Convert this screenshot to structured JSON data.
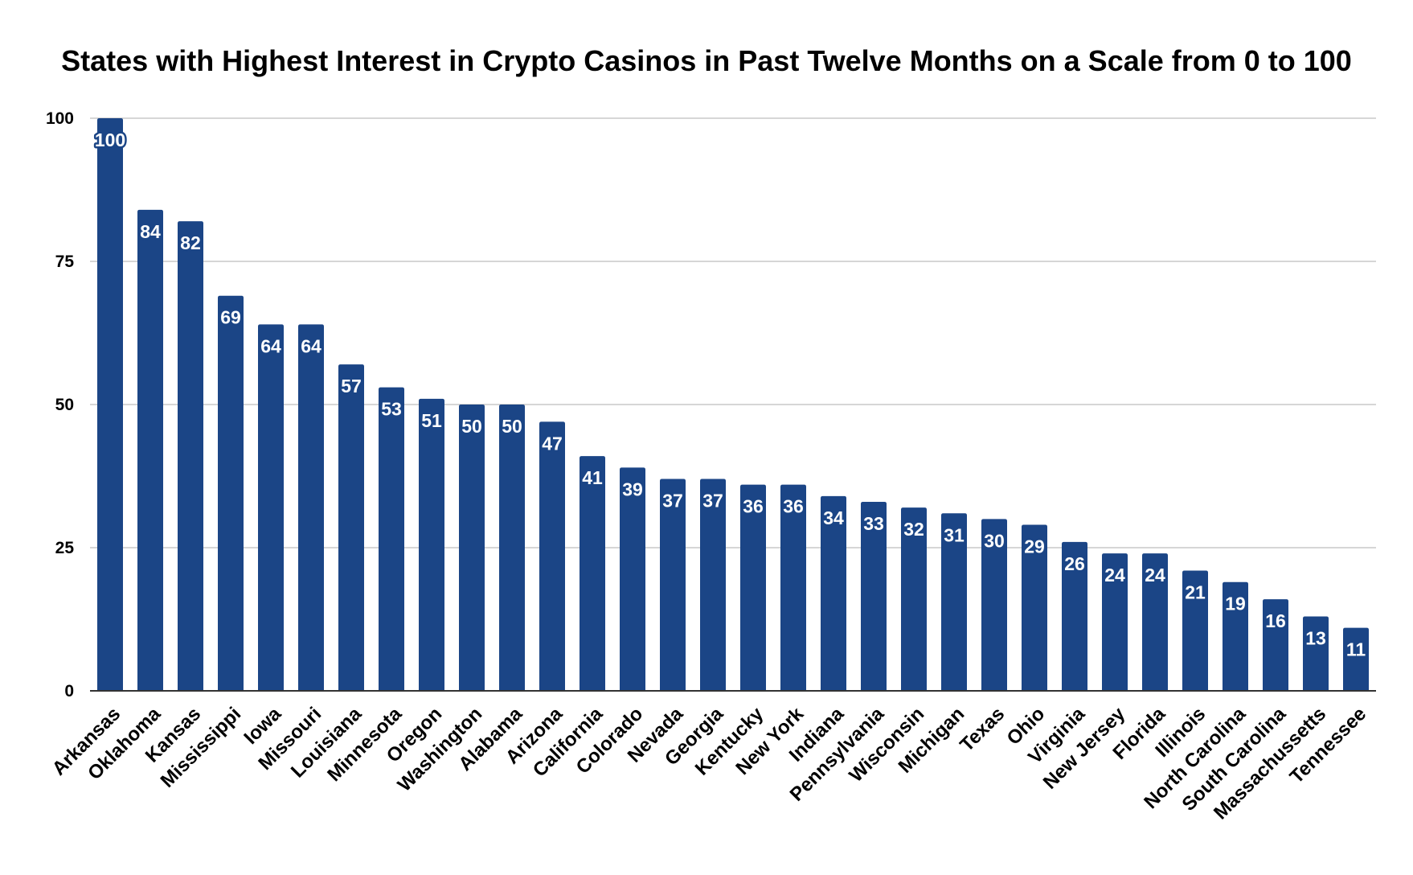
{
  "chart_data": {
    "type": "bar",
    "title": "States with Highest Interest in Crypto Casinos in Past Twelve Months on a Scale from 0 to 100",
    "xlabel": "",
    "ylabel": "",
    "ylim": [
      0,
      100
    ],
    "yticks": [
      0,
      25,
      50,
      75,
      100
    ],
    "grid": true,
    "legend": "none",
    "bar_color": "#1b4586",
    "categories": [
      "Arkansas",
      "Oklahoma",
      "Kansas",
      "Mississippi",
      "Iowa",
      "Missouri",
      "Louisiana",
      "Minnesota",
      "Oregon",
      "Washington",
      "Alabama",
      "Arizona",
      "California",
      "Colorado",
      "Nevada",
      "Georgia",
      "Kentucky",
      "New York",
      "Indiana",
      "Pennsylvania",
      "Wisconsin",
      "Michigan",
      "Texas",
      "Ohio",
      "Virginia",
      "New Jersey",
      "Florida",
      "Illinois",
      "North Carolina",
      "South Carolina",
      "Massachussetts",
      "Tennessee"
    ],
    "values": [
      100,
      84,
      82,
      69,
      64,
      64,
      57,
      53,
      51,
      50,
      50,
      47,
      41,
      39,
      37,
      37,
      36,
      36,
      34,
      33,
      32,
      31,
      30,
      29,
      26,
      24,
      24,
      21,
      19,
      16,
      13,
      11
    ]
  }
}
